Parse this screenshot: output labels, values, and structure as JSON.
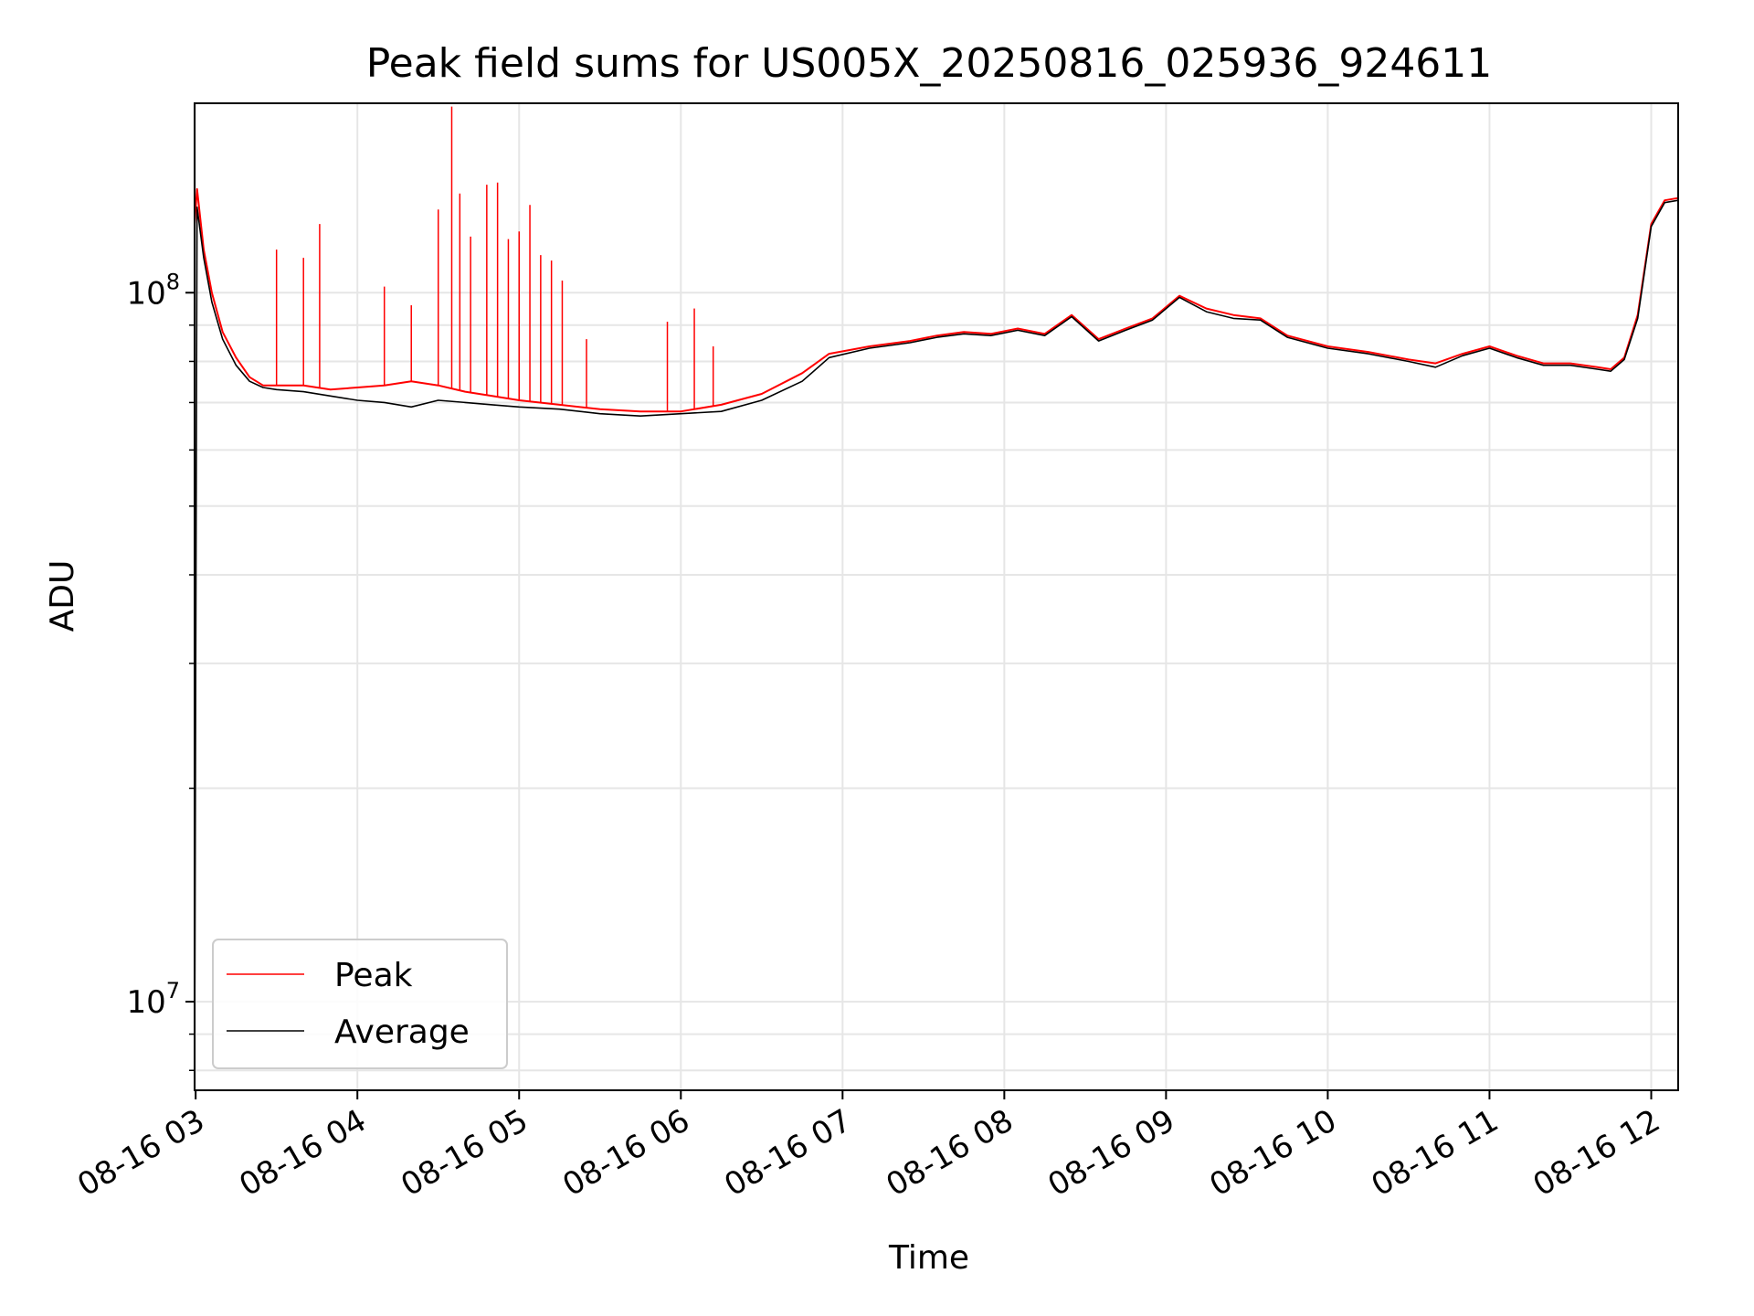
{
  "chart_data": {
    "type": "line",
    "title": "Peak field sums for US005X_20250816_025936_924611",
    "xlabel": "Time",
    "ylabel": "ADU",
    "yscale": "log",
    "grid": true,
    "legend_position": "lower-left",
    "xlim": [
      "2025-08-16 02:59:36",
      "2025-08-16 12:10:00"
    ],
    "ylim": [
      7500000,
      185000000
    ],
    "x_ticks": [
      {
        "time": "2025-08-16 03:00",
        "label": "08-16 03"
      },
      {
        "time": "2025-08-16 04:00",
        "label": "08-16 04"
      },
      {
        "time": "2025-08-16 05:00",
        "label": "08-16 05"
      },
      {
        "time": "2025-08-16 06:00",
        "label": "08-16 06"
      },
      {
        "time": "2025-08-16 07:00",
        "label": "08-16 07"
      },
      {
        "time": "2025-08-16 08:00",
        "label": "08-16 08"
      },
      {
        "time": "2025-08-16 09:00",
        "label": "08-16 09"
      },
      {
        "time": "2025-08-16 10:00",
        "label": "08-16 10"
      },
      {
        "time": "2025-08-16 11:00",
        "label": "08-16 11"
      },
      {
        "time": "2025-08-16 12:00",
        "label": "08-16 12"
      }
    ],
    "y_major_ticks": [
      {
        "value": 10000000,
        "base": "10",
        "exp": "7"
      },
      {
        "value": 100000000,
        "base": "10",
        "exp": "8"
      }
    ],
    "y_minor_ticks": [
      8000000,
      9000000,
      20000000,
      30000000,
      40000000,
      50000000,
      60000000,
      70000000,
      80000000,
      90000000
    ],
    "series": [
      {
        "name": "Peak",
        "color": "#ff0000",
        "x": [
          "2025-08-16 02:59:36",
          "2025-08-16 03:00:30",
          "2025-08-16 03:03",
          "2025-08-16 03:06",
          "2025-08-16 03:10",
          "2025-08-16 03:15",
          "2025-08-16 03:20",
          "2025-08-16 03:25",
          "2025-08-16 03:30",
          "2025-08-16 03:40",
          "2025-08-16 03:50",
          "2025-08-16 04:00",
          "2025-08-16 04:10",
          "2025-08-16 04:20",
          "2025-08-16 04:30",
          "2025-08-16 04:40",
          "2025-08-16 04:50",
          "2025-08-16 05:00",
          "2025-08-16 05:15",
          "2025-08-16 05:30",
          "2025-08-16 05:45",
          "2025-08-16 06:00",
          "2025-08-16 06:15",
          "2025-08-16 06:30",
          "2025-08-16 06:45",
          "2025-08-16 06:55",
          "2025-08-16 07:10",
          "2025-08-16 07:25",
          "2025-08-16 07:35",
          "2025-08-16 07:45",
          "2025-08-16 07:55",
          "2025-08-16 08:05",
          "2025-08-16 08:15",
          "2025-08-16 08:25",
          "2025-08-16 08:35",
          "2025-08-16 08:45",
          "2025-08-16 08:55",
          "2025-08-16 09:05",
          "2025-08-16 09:15",
          "2025-08-16 09:25",
          "2025-08-16 09:35",
          "2025-08-16 09:45",
          "2025-08-16 10:00",
          "2025-08-16 10:15",
          "2025-08-16 10:30",
          "2025-08-16 10:40",
          "2025-08-16 10:50",
          "2025-08-16 11:00",
          "2025-08-16 11:10",
          "2025-08-16 11:20",
          "2025-08-16 11:30",
          "2025-08-16 11:40",
          "2025-08-16 11:45",
          "2025-08-16 11:50",
          "2025-08-16 11:55",
          "2025-08-16 12:00",
          "2025-08-16 12:05",
          "2025-08-16 12:10"
        ],
        "y": [
          125000000,
          140000000,
          115000000,
          100000000,
          88000000,
          81000000,
          76000000,
          74000000,
          74000000,
          74000000,
          73000000,
          73500000,
          74000000,
          75000000,
          74000000,
          72500000,
          71500000,
          70500000,
          69500000,
          68500000,
          68000000,
          68000000,
          69500000,
          72000000,
          77000000,
          82000000,
          84000000,
          85500000,
          87000000,
          88000000,
          87500000,
          89000000,
          87500000,
          93000000,
          86000000,
          89000000,
          92000000,
          99000000,
          95000000,
          93000000,
          92000000,
          87000000,
          84000000,
          82500000,
          80500000,
          79500000,
          82000000,
          84000000,
          81500000,
          79500000,
          79500000,
          78500000,
          78000000,
          81000000,
          93000000,
          125000000,
          135000000,
          136000000
        ],
        "spikes": [
          {
            "x": "2025-08-16 03:05",
            "y": 105000000
          },
          {
            "x": "2025-08-16 03:30",
            "y": 115000000
          },
          {
            "x": "2025-08-16 03:40",
            "y": 112000000
          },
          {
            "x": "2025-08-16 03:46",
            "y": 125000000
          },
          {
            "x": "2025-08-16 04:10",
            "y": 102000000
          },
          {
            "x": "2025-08-16 04:20",
            "y": 96000000
          },
          {
            "x": "2025-08-16 04:30",
            "y": 131000000
          },
          {
            "x": "2025-08-16 04:35",
            "y": 183000000
          },
          {
            "x": "2025-08-16 04:38",
            "y": 138000000
          },
          {
            "x": "2025-08-16 04:42",
            "y": 120000000
          },
          {
            "x": "2025-08-16 04:48",
            "y": 142000000
          },
          {
            "x": "2025-08-16 04:52",
            "y": 143000000
          },
          {
            "x": "2025-08-16 04:56",
            "y": 119000000
          },
          {
            "x": "2025-08-16 05:00",
            "y": 122000000
          },
          {
            "x": "2025-08-16 05:04",
            "y": 133000000
          },
          {
            "x": "2025-08-16 05:08",
            "y": 113000000
          },
          {
            "x": "2025-08-16 05:12",
            "y": 111000000
          },
          {
            "x": "2025-08-16 05:16",
            "y": 104000000
          },
          {
            "x": "2025-08-16 05:25",
            "y": 86000000
          },
          {
            "x": "2025-08-16 05:55",
            "y": 91000000
          },
          {
            "x": "2025-08-16 06:05",
            "y": 95000000
          },
          {
            "x": "2025-08-16 06:12",
            "y": 84000000
          }
        ]
      },
      {
        "name": "Average",
        "color": "#000000",
        "x": [
          "2025-08-16 02:59:36",
          "2025-08-16 03:00:30",
          "2025-08-16 03:03",
          "2025-08-16 03:06",
          "2025-08-16 03:10",
          "2025-08-16 03:15",
          "2025-08-16 03:20",
          "2025-08-16 03:25",
          "2025-08-16 03:30",
          "2025-08-16 03:40",
          "2025-08-16 03:50",
          "2025-08-16 04:00",
          "2025-08-16 04:10",
          "2025-08-16 04:20",
          "2025-08-16 04:30",
          "2025-08-16 04:40",
          "2025-08-16 04:50",
          "2025-08-16 05:00",
          "2025-08-16 05:15",
          "2025-08-16 05:30",
          "2025-08-16 05:45",
          "2025-08-16 06:00",
          "2025-08-16 06:15",
          "2025-08-16 06:30",
          "2025-08-16 06:45",
          "2025-08-16 06:55",
          "2025-08-16 07:10",
          "2025-08-16 07:25",
          "2025-08-16 07:35",
          "2025-08-16 07:45",
          "2025-08-16 07:55",
          "2025-08-16 08:05",
          "2025-08-16 08:15",
          "2025-08-16 08:25",
          "2025-08-16 08:35",
          "2025-08-16 08:45",
          "2025-08-16 08:55",
          "2025-08-16 09:05",
          "2025-08-16 09:15",
          "2025-08-16 09:25",
          "2025-08-16 09:35",
          "2025-08-16 09:45",
          "2025-08-16 10:00",
          "2025-08-16 10:15",
          "2025-08-16 10:30",
          "2025-08-16 10:40",
          "2025-08-16 10:50",
          "2025-08-16 11:00",
          "2025-08-16 11:10",
          "2025-08-16 11:20",
          "2025-08-16 11:30",
          "2025-08-16 11:40",
          "2025-08-16 11:45",
          "2025-08-16 11:50",
          "2025-08-16 11:55",
          "2025-08-16 12:00",
          "2025-08-16 12:05",
          "2025-08-16 12:10"
        ],
        "y": [
          8500000,
          132000000,
          112000000,
          97000000,
          86000000,
          79000000,
          75000000,
          73500000,
          73000000,
          72500000,
          71500000,
          70500000,
          70000000,
          69000000,
          70500000,
          70000000,
          69500000,
          69000000,
          68500000,
          67500000,
          67000000,
          67500000,
          68000000,
          70500000,
          75000000,
          81000000,
          83500000,
          85000000,
          86500000,
          87500000,
          87000000,
          88500000,
          87000000,
          92500000,
          85500000,
          88500000,
          91500000,
          98500000,
          94000000,
          92000000,
          91500000,
          86500000,
          83500000,
          82000000,
          80000000,
          78500000,
          81500000,
          83500000,
          81000000,
          79000000,
          79000000,
          78000000,
          77500000,
          80500000,
          92000000,
          124000000,
          134000000,
          135000000
        ]
      }
    ]
  }
}
